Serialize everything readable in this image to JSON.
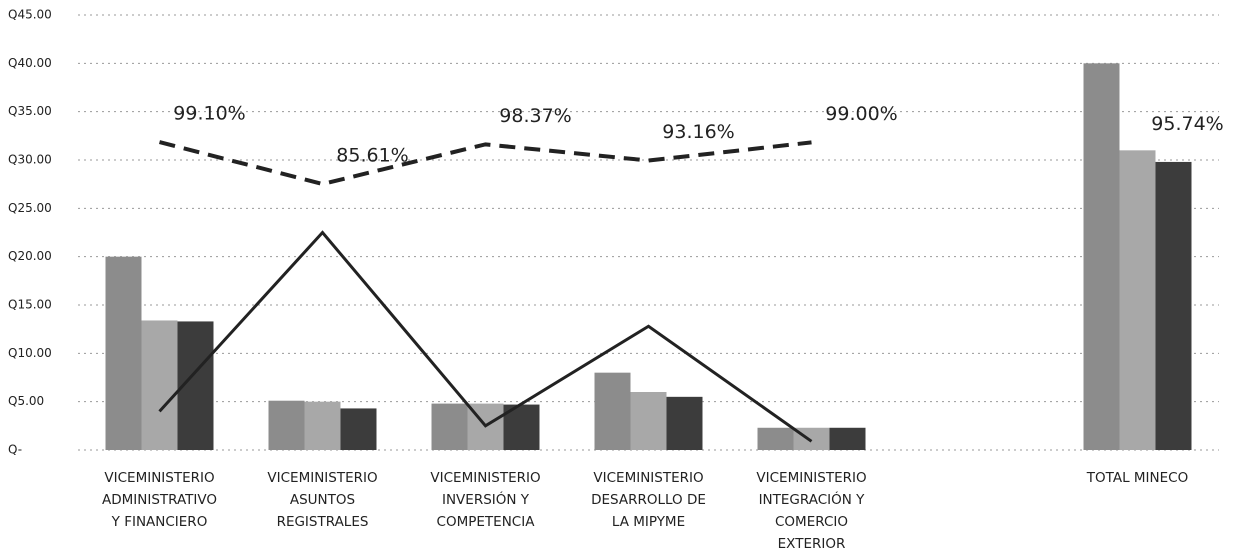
{
  "chart_data": {
    "type": "bar_line",
    "categories": [
      [
        "VICEMINISTERIO",
        "ADMINISTRATIVO",
        "Y FINANCIERO"
      ],
      [
        "VICEMINISTERIO",
        "ASUNTOS",
        "REGISTRALES"
      ],
      [
        "VICEMINISTERIO",
        "INVERSIÓN Y",
        "COMPETENCIA"
      ],
      [
        "VICEMINISTERIO",
        "DESARROLLO DE",
        "LA MIPYME"
      ],
      [
        "VICEMINISTERIO",
        "INTEGRACIÓN Y",
        "COMERCIO",
        "EXTERIOR"
      ],
      null,
      [
        "TOTAL MINECO"
      ]
    ],
    "series": [
      {
        "type": "bar",
        "color": "#8c8c8c",
        "values": [
          20.0,
          5.1,
          4.8,
          8.0,
          2.3,
          null,
          40.0
        ]
      },
      {
        "type": "bar",
        "color": "#a8a8a8",
        "values": [
          13.4,
          5.0,
          4.8,
          6.0,
          2.3,
          null,
          31.0
        ]
      },
      {
        "type": "bar",
        "color": "#3c3c3c",
        "values": [
          13.3,
          4.3,
          4.7,
          5.5,
          2.3,
          null,
          29.8
        ]
      },
      {
        "type": "line",
        "color": "#222222",
        "dashed": false,
        "values": [
          4.0,
          22.5,
          2.5,
          12.8,
          0.9,
          null,
          null
        ]
      },
      {
        "type": "line",
        "color": "#222222",
        "dashed": true,
        "axis": "y2",
        "values": [
          99.1,
          85.61,
          98.37,
          93.16,
          99.0,
          null,
          95.74
        ],
        "value_labels": [
          "99.10%",
          "85.61%",
          "98.37%",
          "93.16%",
          "99.00%",
          null,
          "95.74%"
        ]
      }
    ],
    "ylim": [
      0,
      45
    ],
    "yticks": [
      {
        "value": 0,
        "label": "Q-"
      },
      {
        "value": 5,
        "label": "Q5.00"
      },
      {
        "value": 10,
        "label": "Q10.00"
      },
      {
        "value": 15,
        "label": "Q15.00"
      },
      {
        "value": 20,
        "label": "Q20.00"
      },
      {
        "value": 25,
        "label": "Q25.00"
      },
      {
        "value": 30,
        "label": "Q30.00"
      },
      {
        "value": 35,
        "label": "Q35.00"
      },
      {
        "value": 40,
        "label": "Q40.00"
      },
      {
        "value": 45,
        "label": "Q45.00"
      }
    ],
    "y2lim": [
      0,
      140
    ],
    "grid": true
  }
}
